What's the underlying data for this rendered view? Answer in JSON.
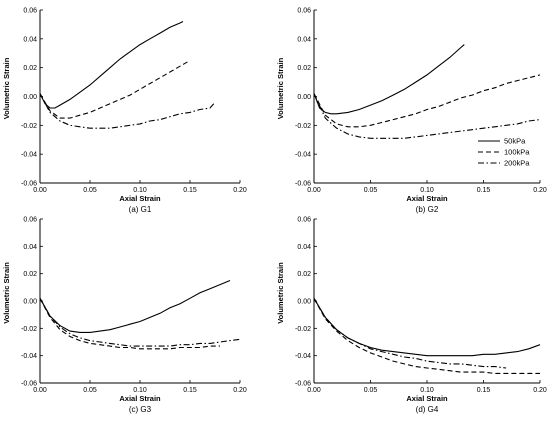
{
  "chart_data": [
    {
      "type": "line",
      "caption": "(a) G1",
      "xlabel": "Axial Strain",
      "ylabel": "Volumetric Strain",
      "xlim": [
        0,
        0.2
      ],
      "ylim": [
        -0.06,
        0.06
      ],
      "xticks": [
        "0.00",
        "0.05",
        "0.10",
        "0.15",
        "0.20"
      ],
      "yticks": [
        "-0.06",
        "-0.04",
        "-0.02",
        "0.00",
        "0.02",
        "0.04",
        "0.06"
      ],
      "series": [
        {
          "style": "solid",
          "x": [
            0,
            0.005,
            0.01,
            0.015,
            0.02,
            0.03,
            0.04,
            0.05,
            0.06,
            0.07,
            0.08,
            0.09,
            0.1,
            0.11,
            0.12,
            0.13,
            0.14,
            0.143
          ],
          "y": [
            0.002,
            -0.005,
            -0.008,
            -0.008,
            -0.006,
            -0.002,
            0.003,
            0.008,
            0.014,
            0.02,
            0.026,
            0.031,
            0.036,
            0.04,
            0.044,
            0.048,
            0.051,
            0.052
          ]
        },
        {
          "style": "dash",
          "x": [
            0,
            0.01,
            0.02,
            0.03,
            0.04,
            0.05,
            0.06,
            0.07,
            0.08,
            0.09,
            0.1,
            0.11,
            0.12,
            0.13,
            0.14,
            0.15
          ],
          "y": [
            0.002,
            -0.01,
            -0.015,
            -0.015,
            -0.013,
            -0.011,
            -0.008,
            -0.005,
            -0.002,
            0.001,
            0.005,
            0.009,
            0.013,
            0.017,
            0.021,
            0.025
          ]
        },
        {
          "style": "dashdot",
          "x": [
            0,
            0.01,
            0.02,
            0.03,
            0.04,
            0.05,
            0.06,
            0.07,
            0.08,
            0.09,
            0.1,
            0.11,
            0.12,
            0.13,
            0.14,
            0.15,
            0.16,
            0.17,
            0.175
          ],
          "y": [
            0.002,
            -0.011,
            -0.017,
            -0.02,
            -0.021,
            -0.022,
            -0.022,
            -0.022,
            -0.021,
            -0.02,
            -0.019,
            -0.017,
            -0.016,
            -0.014,
            -0.012,
            -0.011,
            -0.009,
            -0.008,
            -0.004
          ]
        }
      ]
    },
    {
      "type": "line",
      "caption": "(b) G2",
      "xlabel": "Axial Strain",
      "ylabel": "Volumetric Strain",
      "xlim": [
        0,
        0.2
      ],
      "ylim": [
        -0.06,
        0.06
      ],
      "xticks": [
        "0.00",
        "0.05",
        "0.10",
        "0.15",
        "0.20"
      ],
      "yticks": [
        "-0.06",
        "-0.04",
        "-0.02",
        "0.00",
        "0.02",
        "0.04",
        "0.06"
      ],
      "legend": {
        "placement": "right",
        "entries": [
          "50kPa",
          "100kPa",
          "200kPa"
        ]
      },
      "series": [
        {
          "name": "50kPa",
          "style": "solid",
          "x": [
            0,
            0.005,
            0.01,
            0.015,
            0.02,
            0.03,
            0.04,
            0.05,
            0.06,
            0.07,
            0.08,
            0.09,
            0.1,
            0.11,
            0.12,
            0.13,
            0.133
          ],
          "y": [
            0.002,
            -0.008,
            -0.011,
            -0.012,
            -0.012,
            -0.011,
            -0.009,
            -0.006,
            -0.003,
            0.001,
            0.005,
            0.01,
            0.015,
            0.021,
            0.027,
            0.034,
            0.036
          ]
        },
        {
          "name": "100kPa",
          "style": "dash",
          "x": [
            0,
            0.01,
            0.02,
            0.03,
            0.04,
            0.05,
            0.06,
            0.07,
            0.08,
            0.09,
            0.1,
            0.11,
            0.12,
            0.13,
            0.14,
            0.15,
            0.16,
            0.17,
            0.18,
            0.19,
            0.2
          ],
          "y": [
            0.002,
            -0.013,
            -0.019,
            -0.021,
            -0.021,
            -0.02,
            -0.018,
            -0.016,
            -0.014,
            -0.012,
            -0.009,
            -0.007,
            -0.004,
            -0.001,
            0.001,
            0.004,
            0.006,
            0.009,
            0.011,
            0.013,
            0.015
          ]
        },
        {
          "name": "200kPa",
          "style": "dashdot",
          "x": [
            0,
            0.01,
            0.02,
            0.03,
            0.04,
            0.05,
            0.06,
            0.07,
            0.08,
            0.09,
            0.1,
            0.11,
            0.12,
            0.13,
            0.14,
            0.15,
            0.16,
            0.17,
            0.18,
            0.19,
            0.2
          ],
          "y": [
            0.002,
            -0.015,
            -0.022,
            -0.026,
            -0.028,
            -0.029,
            -0.029,
            -0.029,
            -0.029,
            -0.028,
            -0.027,
            -0.026,
            -0.025,
            -0.024,
            -0.023,
            -0.022,
            -0.021,
            -0.02,
            -0.019,
            -0.017,
            -0.016
          ]
        }
      ]
    },
    {
      "type": "line",
      "caption": "(c) G3",
      "xlabel": "Axial Strain",
      "ylabel": "Volumetric Strain",
      "xlim": [
        0,
        0.2
      ],
      "ylim": [
        -0.06,
        0.06
      ],
      "xticks": [
        "0.00",
        "0.05",
        "0.10",
        "0.15",
        "0.20"
      ],
      "yticks": [
        "-0.06",
        "-0.04",
        "-0.02",
        "0.00",
        "0.02",
        "0.04",
        "0.06"
      ],
      "series": [
        {
          "style": "solid",
          "x": [
            0,
            0.01,
            0.02,
            0.03,
            0.04,
            0.05,
            0.06,
            0.07,
            0.08,
            0.09,
            0.1,
            0.11,
            0.12,
            0.13,
            0.14,
            0.15,
            0.16,
            0.17,
            0.18,
            0.19
          ],
          "y": [
            0.002,
            -0.011,
            -0.018,
            -0.022,
            -0.023,
            -0.023,
            -0.022,
            -0.021,
            -0.019,
            -0.017,
            -0.015,
            -0.012,
            -0.009,
            -0.005,
            -0.002,
            0.002,
            0.006,
            0.009,
            0.012,
            0.015
          ]
        },
        {
          "style": "dash",
          "x": [
            0,
            0.01,
            0.02,
            0.03,
            0.04,
            0.05,
            0.06,
            0.07,
            0.08,
            0.09,
            0.1,
            0.11,
            0.12,
            0.13,
            0.14,
            0.15,
            0.16,
            0.17,
            0.18
          ],
          "y": [
            0.002,
            -0.012,
            -0.021,
            -0.026,
            -0.029,
            -0.031,
            -0.032,
            -0.033,
            -0.034,
            -0.034,
            -0.035,
            -0.035,
            -0.035,
            -0.035,
            -0.034,
            -0.034,
            -0.034,
            -0.033,
            -0.033
          ]
        },
        {
          "style": "dashdot",
          "x": [
            0,
            0.01,
            0.02,
            0.03,
            0.04,
            0.05,
            0.06,
            0.07,
            0.08,
            0.09,
            0.1,
            0.11,
            0.12,
            0.13,
            0.14,
            0.15,
            0.16,
            0.17,
            0.18,
            0.19,
            0.2
          ],
          "y": [
            0.002,
            -0.011,
            -0.019,
            -0.024,
            -0.027,
            -0.029,
            -0.03,
            -0.031,
            -0.032,
            -0.033,
            -0.033,
            -0.033,
            -0.033,
            -0.033,
            -0.032,
            -0.032,
            -0.031,
            -0.031,
            -0.03,
            -0.029,
            -0.028
          ]
        }
      ]
    },
    {
      "type": "line",
      "caption": "(d) G4",
      "xlabel": "Axial Strain",
      "ylabel": "Volumetric Strain",
      "xlim": [
        0,
        0.2
      ],
      "ylim": [
        -0.06,
        0.06
      ],
      "xticks": [
        "0.00",
        "0.05",
        "0.10",
        "0.15",
        "0.20"
      ],
      "yticks": [
        "-0.06",
        "-0.04",
        "-0.02",
        "0.00",
        "0.02",
        "0.04",
        "0.06"
      ],
      "series": [
        {
          "style": "solid",
          "x": [
            0,
            0.01,
            0.02,
            0.03,
            0.04,
            0.05,
            0.06,
            0.07,
            0.08,
            0.09,
            0.1,
            0.11,
            0.12,
            0.13,
            0.14,
            0.15,
            0.16,
            0.17,
            0.18,
            0.19,
            0.2
          ],
          "y": [
            0.002,
            -0.012,
            -0.021,
            -0.027,
            -0.031,
            -0.034,
            -0.036,
            -0.037,
            -0.038,
            -0.039,
            -0.04,
            -0.04,
            -0.04,
            -0.04,
            -0.04,
            -0.039,
            -0.039,
            -0.038,
            -0.037,
            -0.035,
            -0.032
          ]
        },
        {
          "style": "dash",
          "x": [
            0,
            0.01,
            0.02,
            0.03,
            0.04,
            0.05,
            0.06,
            0.07,
            0.08,
            0.09,
            0.1,
            0.11,
            0.12,
            0.13,
            0.14,
            0.15,
            0.16,
            0.17,
            0.18,
            0.19,
            0.2
          ],
          "y": [
            0.002,
            -0.013,
            -0.022,
            -0.029,
            -0.034,
            -0.038,
            -0.041,
            -0.044,
            -0.046,
            -0.048,
            -0.049,
            -0.05,
            -0.051,
            -0.052,
            -0.052,
            -0.052,
            -0.053,
            -0.053,
            -0.053,
            -0.053,
            -0.053
          ]
        },
        {
          "style": "dashdot",
          "x": [
            0,
            0.01,
            0.02,
            0.03,
            0.04,
            0.05,
            0.06,
            0.07,
            0.08,
            0.09,
            0.1,
            0.11,
            0.12,
            0.13,
            0.14,
            0.15,
            0.16,
            0.17
          ],
          "y": [
            0.002,
            -0.012,
            -0.021,
            -0.027,
            -0.031,
            -0.035,
            -0.037,
            -0.039,
            -0.041,
            -0.042,
            -0.044,
            -0.045,
            -0.046,
            -0.046,
            -0.047,
            -0.048,
            -0.048,
            -0.049
          ]
        }
      ]
    }
  ]
}
